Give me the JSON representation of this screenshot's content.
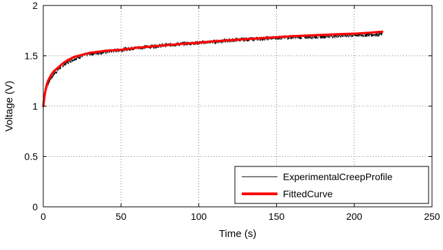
{
  "chart_data": {
    "type": "line",
    "title": "",
    "xlabel": "Time (s)",
    "ylabel": "Voltage (V)",
    "xlim": [
      0,
      250
    ],
    "ylim": [
      0,
      2
    ],
    "xticks": [
      0,
      50,
      100,
      150,
      200,
      250
    ],
    "yticks": [
      0,
      0.5,
      1,
      1.5,
      2
    ],
    "xtick_labels": [
      "0",
      "50",
      "100",
      "150",
      "200",
      "250"
    ],
    "ytick_labels": [
      "0",
      "0.5",
      "1",
      "1.5",
      "2"
    ],
    "grid": true,
    "legend_position": "bottom-right",
    "series": [
      {
        "name": "ExperimentalCreepProfile",
        "color": "#000000",
        "noisy": true,
        "x": [
          0,
          1,
          2,
          3,
          5,
          7,
          10,
          13,
          16,
          20,
          25,
          30,
          35,
          40,
          50,
          60,
          75,
          90,
          100,
          110,
          125,
          140,
          150,
          160,
          175,
          190,
          200,
          210,
          218
        ],
        "y": [
          1.0,
          1.1,
          1.17,
          1.22,
          1.28,
          1.32,
          1.37,
          1.41,
          1.44,
          1.47,
          1.5,
          1.52,
          1.53,
          1.54,
          1.56,
          1.58,
          1.6,
          1.62,
          1.63,
          1.64,
          1.66,
          1.67,
          1.68,
          1.685,
          1.69,
          1.7,
          1.705,
          1.71,
          1.715
        ]
      },
      {
        "name": "FittedCurve",
        "color": "#ff0000",
        "noisy": false,
        "x": [
          0,
          1,
          2,
          3,
          5,
          7,
          10,
          13,
          16,
          20,
          25,
          30,
          35,
          40,
          50,
          60,
          75,
          90,
          100,
          110,
          125,
          140,
          150,
          160,
          175,
          190,
          200,
          210,
          218
        ],
        "y": [
          1.0,
          1.12,
          1.2,
          1.25,
          1.31,
          1.35,
          1.39,
          1.43,
          1.46,
          1.49,
          1.51,
          1.53,
          1.54,
          1.55,
          1.56,
          1.58,
          1.6,
          1.62,
          1.63,
          1.645,
          1.66,
          1.675,
          1.685,
          1.695,
          1.705,
          1.715,
          1.72,
          1.73,
          1.74
        ]
      }
    ]
  }
}
